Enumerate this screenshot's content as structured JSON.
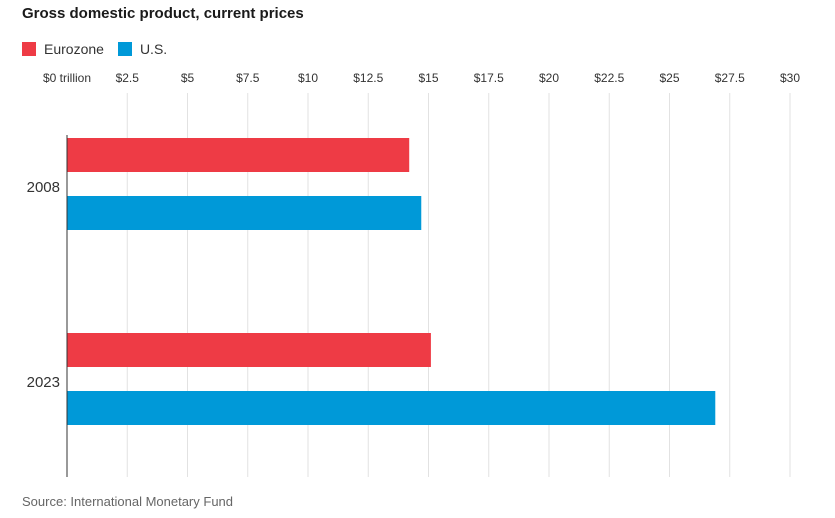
{
  "chart_data": {
    "type": "bar",
    "orientation": "horizontal",
    "title": "Gross domestic product, current prices",
    "categories": [
      "2008",
      "2023"
    ],
    "series": [
      {
        "name": "Eurozone",
        "color": "#ee3b45",
        "values": [
          14.2,
          15.1
        ]
      },
      {
        "name": "U.S.",
        "color": "#0099d8",
        "values": [
          14.7,
          26.9
        ]
      }
    ],
    "xlim": [
      0,
      30
    ],
    "ticks": [
      {
        "value": 0,
        "label": "$0 trillion"
      },
      {
        "value": 2.5,
        "label": "$2.5"
      },
      {
        "value": 5,
        "label": "$5"
      },
      {
        "value": 7.5,
        "label": "$7.5"
      },
      {
        "value": 10,
        "label": "$10"
      },
      {
        "value": 12.5,
        "label": "$12.5"
      },
      {
        "value": 15,
        "label": "$15"
      },
      {
        "value": 17.5,
        "label": "$17.5"
      },
      {
        "value": 20,
        "label": "$20"
      },
      {
        "value": 22.5,
        "label": "$22.5"
      },
      {
        "value": 25,
        "label": "$25"
      },
      {
        "value": 27.5,
        "label": "$27.5"
      },
      {
        "value": 30,
        "label": "$30"
      }
    ],
    "grid": true,
    "legend_position": "top-left",
    "source": "Source: International Monetary Fund"
  }
}
